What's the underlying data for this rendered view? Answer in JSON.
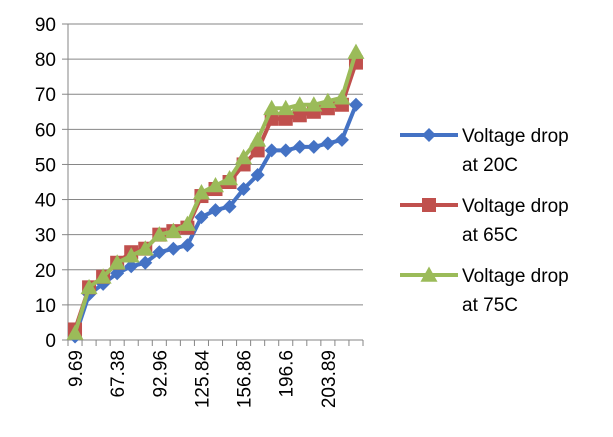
{
  "chart_data": {
    "type": "line",
    "title": "",
    "xlabel": "",
    "ylabel": "",
    "ylim": [
      0,
      90
    ],
    "y_ticks": [
      0,
      10,
      20,
      30,
      40,
      50,
      60,
      70,
      80,
      90
    ],
    "x_tick_labels": [
      "9.69",
      "67.38",
      "92.96",
      "125.84",
      "156.86",
      "196.6",
      "203.89"
    ],
    "x_label_every": 3,
    "point_count": 21,
    "grid": "horizontal",
    "legend_position": "right",
    "series": [
      {
        "name": "Voltage drop at 20C",
        "legend_lines": [
          "Voltage drop",
          "at 20C"
        ],
        "color": "#4472C4",
        "marker": "diamond",
        "values": [
          1,
          13,
          16,
          19,
          21,
          22,
          25,
          26,
          27,
          35,
          37,
          38,
          43,
          47,
          54,
          54,
          55,
          55,
          56,
          57,
          67
        ]
      },
      {
        "name": "Voltage drop at 65C",
        "legend_lines": [
          "Voltage drop",
          "at 65C"
        ],
        "color": "#C0504D",
        "marker": "square",
        "values": [
          3,
          15,
          18,
          22,
          25,
          26,
          30,
          31,
          32,
          41,
          43,
          45,
          50,
          54,
          63,
          63,
          64,
          65,
          66,
          67,
          79
        ]
      },
      {
        "name": "Voltage drop at 75C",
        "legend_lines": [
          "Voltage drop",
          "at 75C"
        ],
        "color": "#9BBB59",
        "marker": "triangle",
        "values": [
          2,
          15,
          18,
          22,
          24,
          26,
          30,
          31,
          33,
          42,
          44,
          46,
          52,
          57,
          66,
          66,
          67,
          67,
          68,
          69,
          82
        ]
      }
    ]
  }
}
